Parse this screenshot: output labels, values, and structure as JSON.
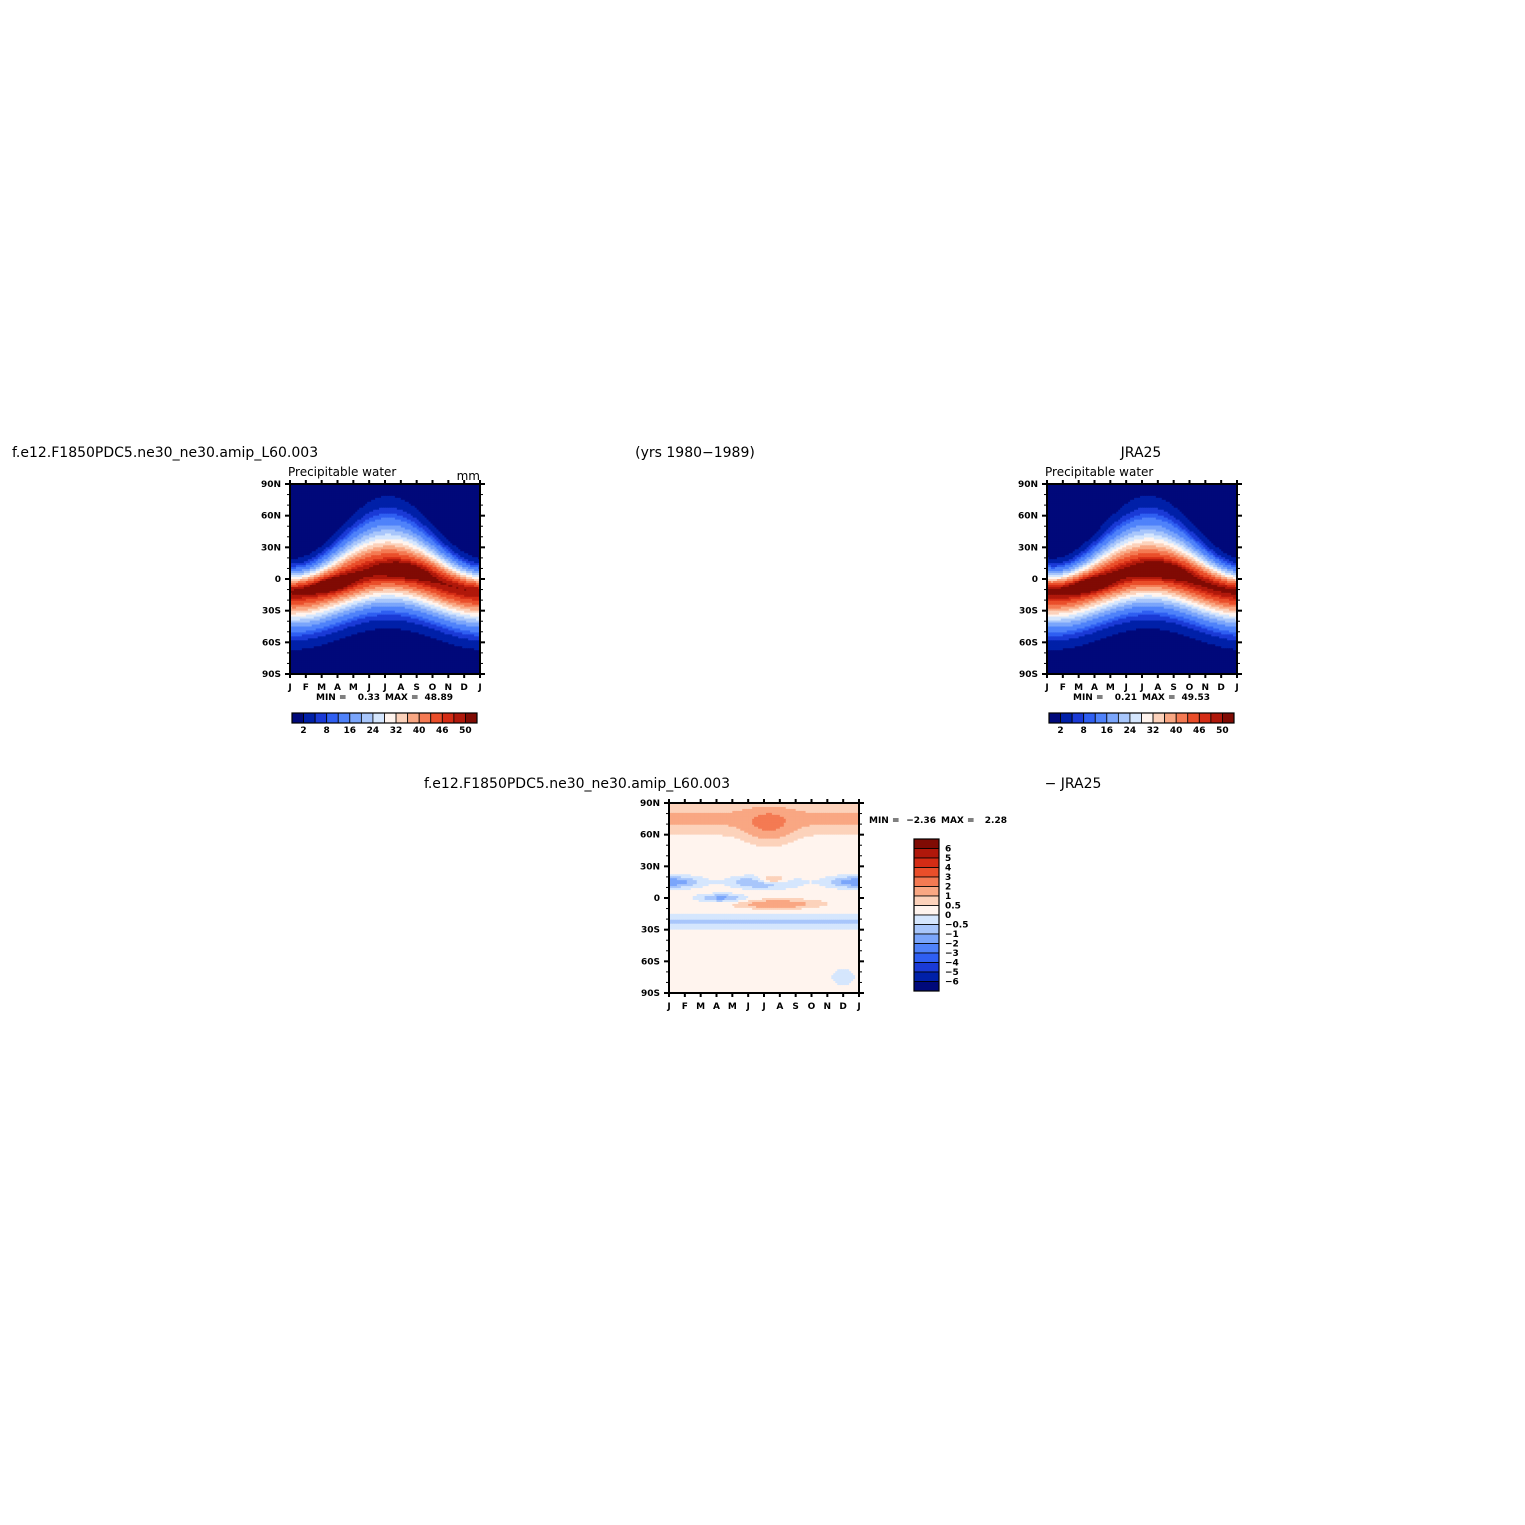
{
  "header": {
    "left_case": "f.e12.F1850PDC5.ne30_ne30.amip_L60.003",
    "years": "(yrs 1980−1989)",
    "right_obs": "JRA25",
    "diff_case": "f.e12.F1850PDC5.ne30_ne30.amip_L60.003",
    "diff_obs": "− JRA25"
  },
  "chart_data": [
    {
      "type": "heatmap",
      "name": "model",
      "title": "f.e12.F1850PDC5.ne30_ne30.amip_L60.003",
      "field_label": "Precipitable water",
      "units": "mm",
      "x_ticks": [
        "J",
        "F",
        "M",
        "A",
        "M",
        "J",
        "J",
        "A",
        "S",
        "O",
        "N",
        "D",
        "J"
      ],
      "y_ticks": [
        "90N",
        "60N",
        "30N",
        "0",
        "30S",
        "60S",
        "90S"
      ],
      "ylim": [
        -90,
        90
      ],
      "min_label": "MIN =",
      "min_value": "0.33",
      "max_label": "MAX =",
      "max_value": "48.89",
      "colorbar_labels": [
        "2",
        "8",
        "16",
        "24",
        "32",
        "40",
        "46",
        "50"
      ],
      "levels": [
        2,
        4,
        6,
        8,
        12,
        16,
        20,
        24,
        28,
        32,
        36,
        40,
        44,
        46,
        48,
        50
      ],
      "colors": [
        "#00097a",
        "#0020a8",
        "#1a3ad6",
        "#2f5ff2",
        "#4f82fa",
        "#7aa5fb",
        "#a8c6fb",
        "#d5e6fd",
        "#fff4ee",
        "#fcd2bb",
        "#f9a783",
        "#f47a53",
        "#ea4e2a",
        "#d42c15",
        "#b0180b",
        "#800b04"
      ],
      "peak_month": 6.2,
      "peak_amp": 10
    },
    {
      "type": "heatmap",
      "name": "obs",
      "title": "JRA25",
      "field_label": "Precipitable water",
      "x_ticks": [
        "J",
        "F",
        "M",
        "A",
        "M",
        "J",
        "J",
        "A",
        "S",
        "O",
        "N",
        "D",
        "J"
      ],
      "y_ticks": [
        "90N",
        "60N",
        "30N",
        "0",
        "30S",
        "60S",
        "90S"
      ],
      "ylim": [
        -90,
        90
      ],
      "min_label": "MIN =",
      "min_value": "0.21",
      "max_label": "MAX =",
      "max_value": "49.53",
      "colorbar_labels": [
        "2",
        "8",
        "16",
        "24",
        "32",
        "40",
        "46",
        "50"
      ],
      "levels": [
        2,
        4,
        6,
        8,
        12,
        16,
        20,
        24,
        28,
        32,
        36,
        40,
        44,
        46,
        48,
        50
      ],
      "colors": [
        "#00097a",
        "#0020a8",
        "#1a3ad6",
        "#2f5ff2",
        "#4f82fa",
        "#7aa5fb",
        "#a8c6fb",
        "#d5e6fd",
        "#fff4ee",
        "#fcd2bb",
        "#f9a783",
        "#f47a53",
        "#ea4e2a",
        "#d42c15",
        "#b0180b",
        "#800b04"
      ],
      "peak_month": 6.4,
      "peak_amp": 10
    },
    {
      "type": "heatmap",
      "name": "difference",
      "title": "f.e12.F1850PDC5.ne30_ne30.amip_L60.003 − JRA25",
      "x_ticks": [
        "J",
        "F",
        "M",
        "A",
        "M",
        "J",
        "J",
        "A",
        "S",
        "O",
        "N",
        "D",
        "J"
      ],
      "y_ticks": [
        "90N",
        "60N",
        "30N",
        "0",
        "30S",
        "60S",
        "90S"
      ],
      "ylim": [
        -90,
        90
      ],
      "min_label": "MIN =",
      "min_value": "−2.36",
      "max_label": "MAX =",
      "max_value": "2.28",
      "colorbar_labels": [
        "6",
        "5",
        "4",
        "3",
        "2",
        "1",
        "0.5",
        "0",
        "−0.5",
        "−1",
        "−2",
        "−3",
        "−4",
        "−5",
        "−6"
      ],
      "colors_top_to_bottom": [
        "#800b04",
        "#b0180b",
        "#d42c15",
        "#ea4e2a",
        "#f47a53",
        "#f9a783",
        "#fcd2bb",
        "#fff4ee",
        "#d5e6fd",
        "#a8c6fb",
        "#7aa5fb",
        "#4f82fa",
        "#2f5ff2",
        "#1a3ad6",
        "#0020a8",
        "#00097a"
      ]
    }
  ]
}
